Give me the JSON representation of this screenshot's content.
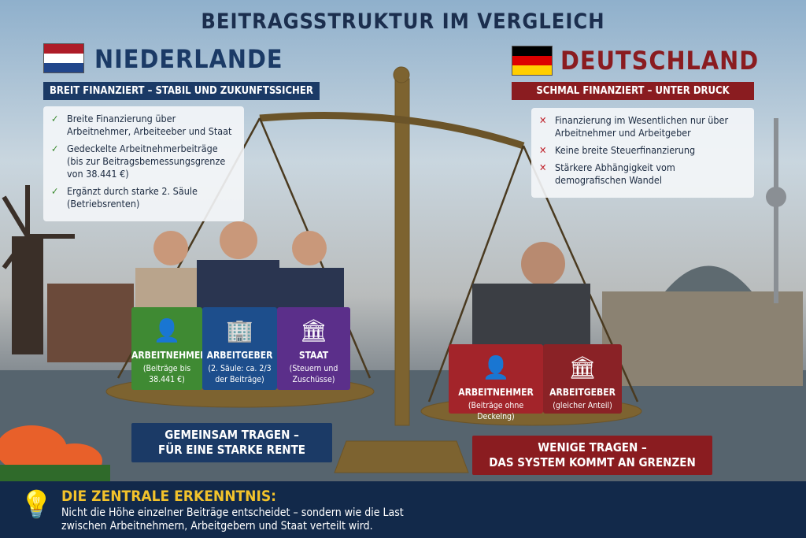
{
  "title": "BEITRAGSSTRUKTUR IM VERGLEICH",
  "left": {
    "country": "NIEDERLANDE",
    "banner": "BREIT FINANZIERT – STABIL UND ZUKUNFTSSICHER",
    "points": [
      "Breite Finanzierung über Arbeitnehmer, Arbeiteeber und Staat",
      "Gedeckelte Arbeitnehmerbeiträge (bis zur Beitragsbemessungsgrenze von 38.441 €)",
      "Ergänzt durch starke 2. Säule (Betriebsrenten)"
    ],
    "cards": [
      {
        "label": "ARBEITNEHMER",
        "sub": "(Beiträge bis 38.441 €)",
        "icon": "person-icon",
        "color": "#3f8a33"
      },
      {
        "label": "ARBEITGEBER",
        "sub": "(2. Säule: ca. 2/3 der Beiträge)",
        "icon": "building-icon",
        "color": "#1d4e8c"
      },
      {
        "label": "STAAT",
        "sub": "(Steuern und Zuschüsse)",
        "icon": "government-icon",
        "color": "#5b2f8a"
      }
    ],
    "slogan": [
      "GEMEINSAM TRAGEN –",
      "FÜR EINE STARKE RENTE"
    ],
    "accent": "#1b3a66"
  },
  "right": {
    "country": "DEUTSCHLAND",
    "banner": "SCHMAL FINANZIERT – UNTER DRUCK",
    "points": [
      "Finanzierung im Wesentlichen nur über Arbeitnehmer und Arbeitgeber",
      "Keine breite Steuerfinanzierung",
      "Stärkere Abhängigkeit vom demografischen Wandel"
    ],
    "cards": [
      {
        "label": "ARBEITNEHMER",
        "sub": "(Beiträge ohne Deckelng)",
        "icon": "person-icon",
        "color": "#a3242a"
      },
      {
        "label": "ARBEITGEBER",
        "sub": "(gleicher Anteil)",
        "icon": "government-icon",
        "color": "#8a2226"
      }
    ],
    "slogan": [
      "WENIGE TRAGEN –",
      "DAS SYSTEM KOMMT AN GRENZEN"
    ],
    "accent": "#8a1c20"
  },
  "footer": {
    "heading": "DIE ZENTRALE ERKENNTNIS:",
    "text": [
      "Nicht die Höhe einzelner Beiträge entscheidet – sondern wie die Last",
      "zwischen Arbeitnehmern, Arbeitgebern und Staat verteilt wird."
    ],
    "heading_color": "#f2c22b"
  }
}
